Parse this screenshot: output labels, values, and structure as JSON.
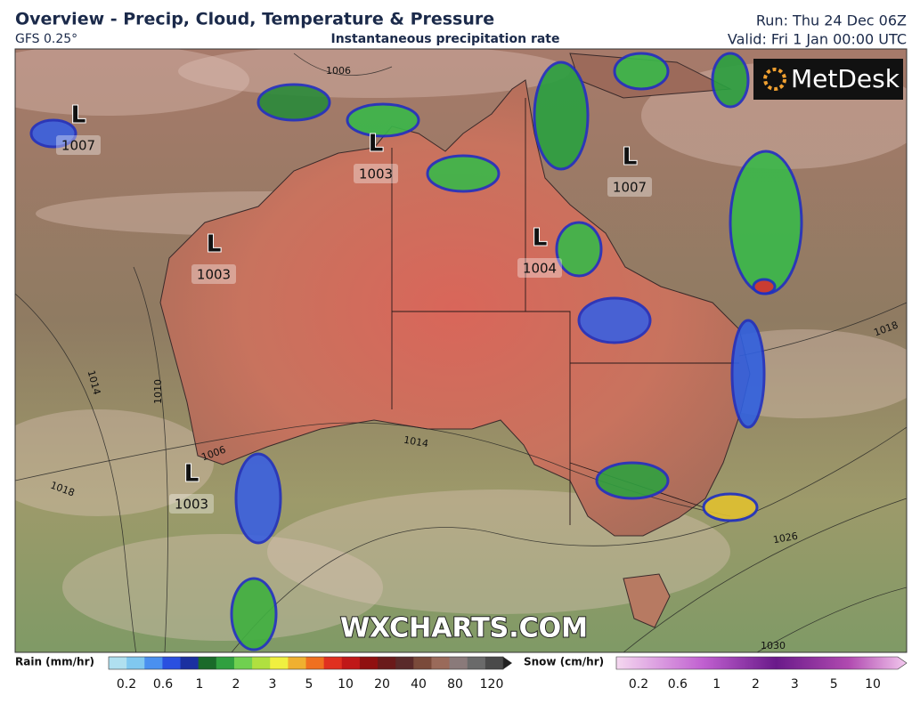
{
  "header": {
    "title": "Overview - Precip, Cloud, Temperature & Pressure",
    "model": "GFS 0.25°",
    "subtitle": "Instantaneous precipitation rate",
    "run": "Run: Thu 24 Dec 06Z",
    "valid": "Valid: Fri 1 Jan 00:00 UTC"
  },
  "map": {
    "logo": "MetDesk",
    "watermark": "WXCHARTS.COM",
    "lows": [
      {
        "symbol": "L",
        "pressure": 1007
      },
      {
        "symbol": "L",
        "pressure": 1003
      },
      {
        "symbol": "L",
        "pressure": 1007
      },
      {
        "symbol": "L",
        "pressure": 1004
      },
      {
        "symbol": "L",
        "pressure": 1003
      },
      {
        "symbol": "L",
        "pressure": 1003
      }
    ],
    "isobar_labels": [
      1006,
      1014,
      1010,
      1006,
      1018,
      1014,
      1018,
      1026,
      1030
    ]
  },
  "legend": {
    "rain": {
      "title": "Rain (mm/hr)",
      "ticks": [
        0.2,
        0.6,
        1,
        2,
        3,
        5,
        10,
        20,
        40,
        80,
        120
      ]
    },
    "snow": {
      "title": "Snow (cm/hr)",
      "ticks": [
        0.2,
        0.6,
        1,
        2,
        3,
        5,
        10
      ]
    }
  }
}
